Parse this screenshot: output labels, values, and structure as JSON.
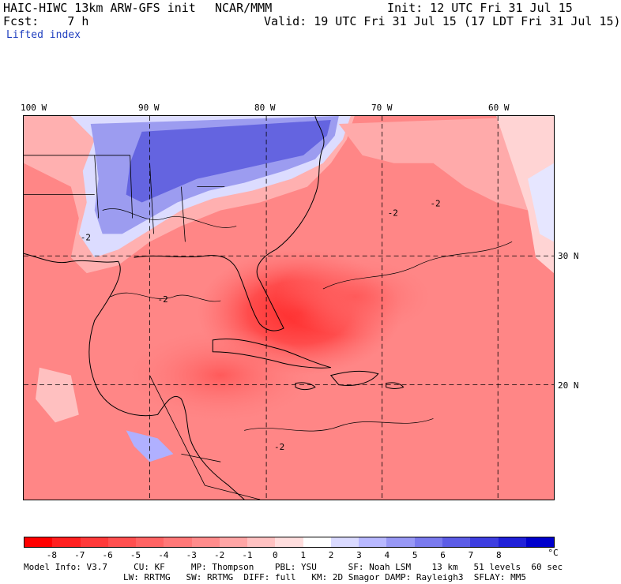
{
  "header": {
    "model": "HAIC-HIWC 13km ARW-GFS init",
    "org": "NCAR/MMM",
    "init": "Init: 12 UTC Fri 31 Jul 15",
    "fcst": "Fcst:    7 h",
    "valid": "Valid: 19 UTC Fri 31 Jul 15 (17 LDT Fri 31 Jul 15)",
    "field": "Lifted index"
  },
  "map": {
    "lon_labels": [
      "100 W",
      "90 W",
      "80 W",
      "70 W",
      "60 W"
    ],
    "lat_labels": [
      "30 N",
      "20 N"
    ],
    "contour_label": "-2"
  },
  "colorbar": {
    "tick_labels": [
      "-8",
      "-7",
      "-6",
      "-5",
      "-4",
      "-3",
      "-2",
      "-1",
      "0",
      "1",
      "2",
      "3",
      "4",
      "5",
      "6",
      "7",
      "8"
    ],
    "unit": "°C",
    "colors": [
      "#ff0000",
      "#ff2020",
      "#ff3a3a",
      "#ff5050",
      "#ff6464",
      "#ff7878",
      "#ff8c8c",
      "#ffa6a6",
      "#ffc2c2",
      "#ffdede",
      "#ffffff",
      "#dadaff",
      "#b8b8ff",
      "#9898f5",
      "#7a7aee",
      "#5c5ce6",
      "#3e3ee0",
      "#2020d8",
      "#0000cc"
    ]
  },
  "footer": {
    "line1": "Model Info: V3.7     CU: KF     MP: Thompson    PBL: YSU      SF: Noah LSM    13 km   51 levels  60 sec",
    "line2": "LW: RRTMG   SW: RRTMG  DIFF: full   KM: 2D Smagor DAMP: Rayleigh3  SFLAY: MM5"
  }
}
